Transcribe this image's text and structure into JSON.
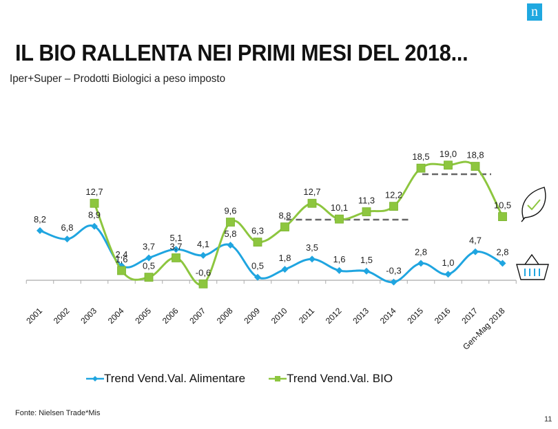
{
  "brand": {
    "logo_letter": "n",
    "logo_color": "#1fa8e0"
  },
  "header": {
    "title": "IL BIO RALLENTA NEI PRIMI MESI DEL 2018...",
    "subtitle": "Iper+Super – Prodotti Biologici a peso imposto"
  },
  "footer": {
    "source": "Fonte: Nielsen Trade*Mis",
    "page_number": "11"
  },
  "icons": {
    "bio_series_icon": "leaf-check-icon",
    "food_series_icon": "shopping-basket-icon"
  },
  "chart_data": {
    "type": "line",
    "title": "",
    "xlabel": "",
    "ylabel": "",
    "categories": [
      "2001",
      "2002",
      "2003",
      "2004",
      "2005",
      "2006",
      "2007",
      "2008",
      "2009",
      "2010",
      "2011",
      "2012",
      "2013",
      "2014",
      "2015",
      "2016",
      "2017",
      "Gen-Mag 2018"
    ],
    "series": [
      {
        "name": "Trend Vend.Val. Alimentare",
        "color": "#1fa5e0",
        "marker": "diamond",
        "values": [
          8.2,
          6.8,
          8.9,
          2.4,
          3.7,
          5.1,
          4.1,
          5.8,
          0.5,
          1.8,
          3.5,
          1.6,
          1.5,
          -0.3,
          2.8,
          1.0,
          4.7,
          2.8
        ],
        "labels": [
          "8,2",
          "6,8",
          "8,9",
          "2,4",
          "3,7",
          "5,1",
          "4,1",
          "5,8",
          "0,5",
          "1,8",
          "3,5",
          "1,6",
          "1,5",
          "-0,3",
          "2,8",
          "1,0",
          "4,7",
          "2,8"
        ]
      },
      {
        "name": "Trend Vend.Val. BIO",
        "color": "#8dc63f",
        "marker": "square",
        "values": [
          null,
          null,
          12.7,
          1.6,
          0.5,
          3.7,
          -0.6,
          9.6,
          6.3,
          8.8,
          12.7,
          10.1,
          11.3,
          12.2,
          18.5,
          19.0,
          18.8,
          10.5
        ],
        "labels": [
          null,
          null,
          "12,7",
          "1,6",
          "0,5",
          "3,7",
          "-0,6",
          "9,6",
          "6,3",
          "8,8",
          "12,7",
          "10,1",
          "11,3",
          "12,2",
          "18,5",
          "19,0",
          "18,8",
          "10,5"
        ]
      }
    ],
    "reference_lines": [
      {
        "from": "2010",
        "to": "2014",
        "value": 10.1,
        "style": "dashed",
        "color": "#666666"
      },
      {
        "from": "2015",
        "to": "2017",
        "value": 17.6,
        "style": "dashed",
        "color": "#666666"
      }
    ],
    "ylim": [
      -1,
      20
    ],
    "grid": false,
    "legend": "bottom"
  }
}
